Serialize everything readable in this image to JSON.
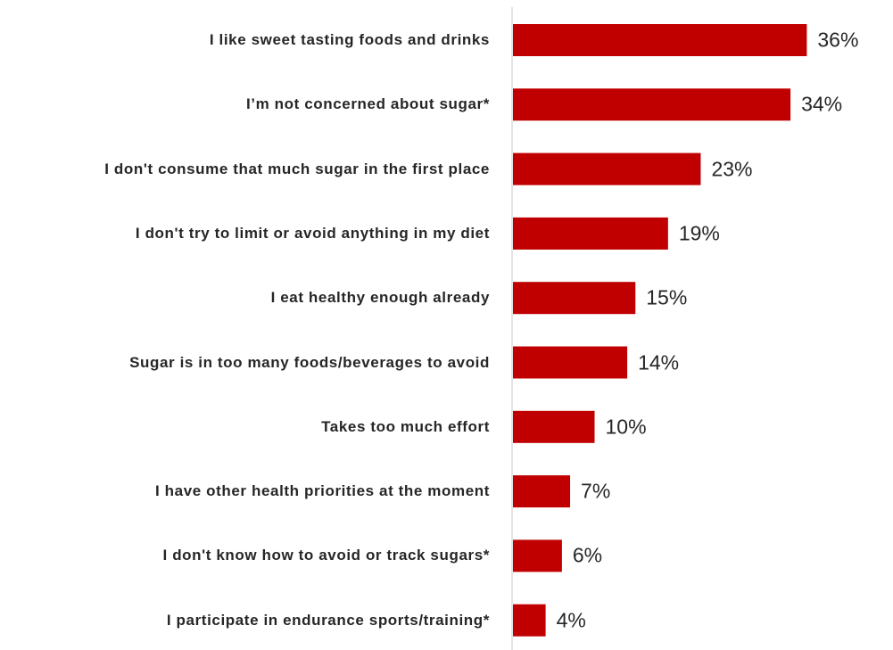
{
  "chart_data": {
    "type": "barh",
    "categories": [
      "I like sweet tasting foods and drinks",
      "I’m not concerned about sugar*",
      "I don't consume that much sugar in the first place",
      "I don't try to limit or avoid anything in my diet",
      "I eat healthy enough already",
      "Sugar is in too many foods/beverages to avoid",
      "Takes too much effort",
      "I have other health priorities at the moment",
      "I don't know how to avoid or track sugars*",
      "I participate in endurance sports/training*"
    ],
    "values": [
      36,
      34,
      23,
      19,
      15,
      14,
      10,
      7,
      6,
      4
    ],
    "value_labels": [
      "36%",
      "34%",
      "23%",
      "19%",
      "15%",
      "14%",
      "10%",
      "7%",
      "6%",
      "4%"
    ],
    "color": "#c00000"
  }
}
